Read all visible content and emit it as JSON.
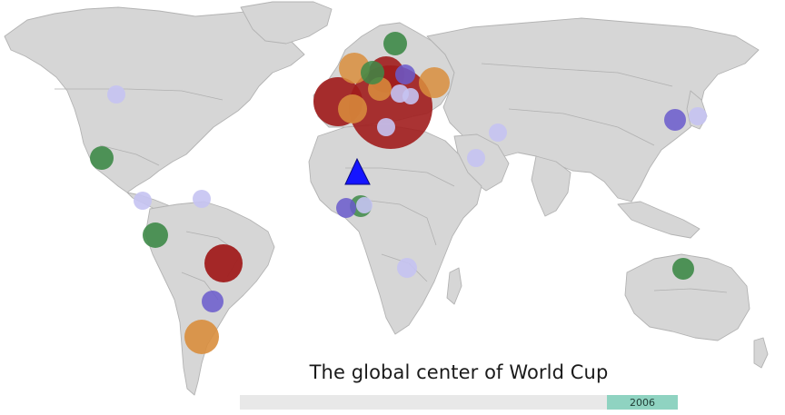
{
  "title": "The global center of World Cup",
  "timeline": {
    "year_label": "2006",
    "position": 0.84
  },
  "colors": {
    "dark_red": "#a11d1d",
    "orange": "#d98e3d",
    "green": "#3e8a48",
    "purple": "#6a5acd",
    "light_purple": "#c5c3f2",
    "marker": "#1515ff"
  },
  "legend_markers": [
    "center-of-gravity-triangle"
  ]
}
